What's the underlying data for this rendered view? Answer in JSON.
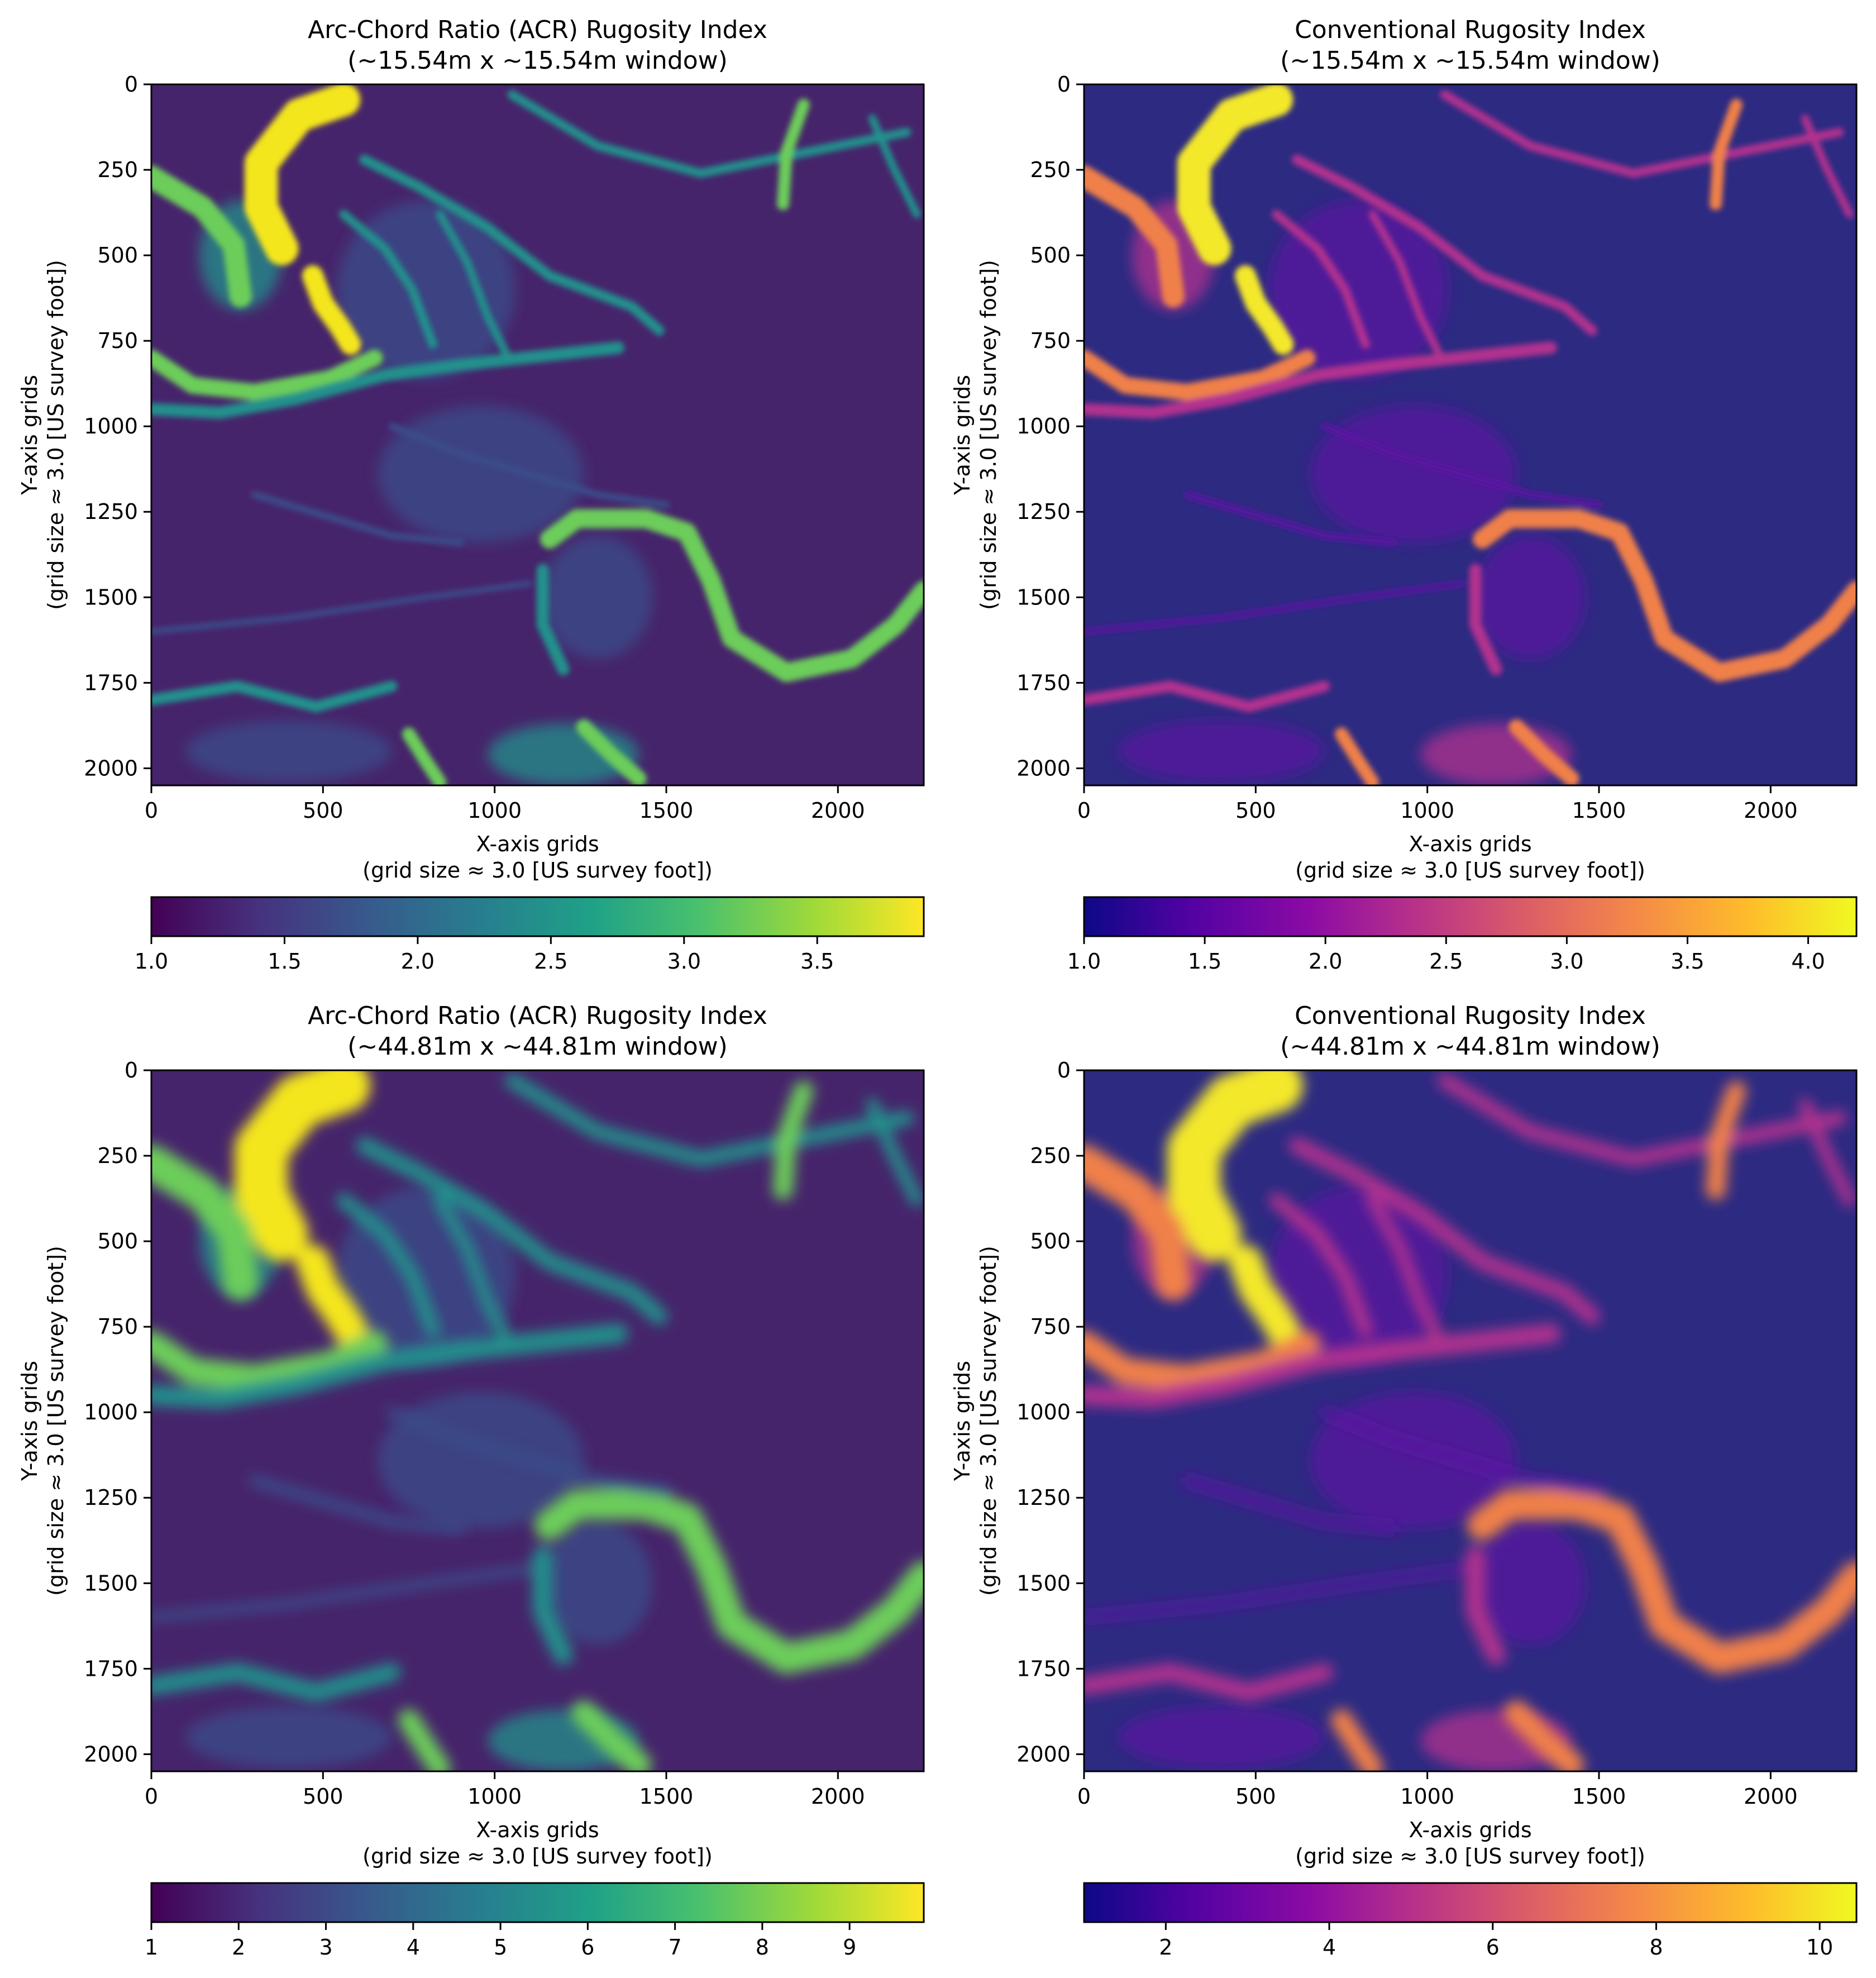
{
  "figure": {
    "panels": [
      {
        "title_line1": "Arc-Chord Ratio (ACR) Rugosity Index",
        "title_line2": "(~15.54m x ~15.54m window)",
        "xlabel_line1": "X-axis grids",
        "xlabel_line2": "(grid size ≈ 3.0 [US survey foot])",
        "ylabel_line1": "Y-axis grids",
        "ylabel_line2": "(grid size ≈ 3.0 [US survey foot])",
        "colormap": "viridis",
        "colorbar_ticks": [
          "1.0",
          "1.5",
          "2.0",
          "2.5",
          "3.0",
          "3.5"
        ]
      },
      {
        "title_line1": "Conventional Rugosity Index",
        "title_line2": "(~15.54m x ~15.54m window)",
        "xlabel_line1": "X-axis grids",
        "xlabel_line2": "(grid size ≈ 3.0 [US survey foot])",
        "ylabel_line1": "Y-axis grids",
        "ylabel_line2": "(grid size ≈ 3.0 [US survey foot])",
        "colormap": "plasma",
        "colorbar_ticks": [
          "1.0",
          "1.5",
          "2.0",
          "2.5",
          "3.0",
          "3.5",
          "4.0"
        ]
      },
      {
        "title_line1": "Arc-Chord Ratio (ACR) Rugosity Index",
        "title_line2": "(~44.81m x ~44.81m window)",
        "xlabel_line1": "X-axis grids",
        "xlabel_line2": "(grid size ≈ 3.0 [US survey foot])",
        "ylabel_line1": "Y-axis grids",
        "ylabel_line2": "(grid size ≈ 3.0 [US survey foot])",
        "colormap": "viridis",
        "colorbar_ticks": [
          "1",
          "2",
          "3",
          "4",
          "5",
          "6",
          "7",
          "8",
          "9"
        ]
      },
      {
        "title_line1": "Conventional Rugosity Index",
        "title_line2": "(~44.81m x ~44.81m window)",
        "xlabel_line1": "X-axis grids",
        "xlabel_line2": "(grid size ≈ 3.0 [US survey foot])",
        "ylabel_line1": "Y-axis grids",
        "ylabel_line2": "(grid size ≈ 3.0 [US survey foot])",
        "colormap": "plasma",
        "colorbar_ticks": [
          "2",
          "4",
          "6",
          "8",
          "10"
        ]
      }
    ]
  },
  "chart_data": [
    {
      "type": "heatmap",
      "title": "Arc-Chord Ratio (ACR) Rugosity Index (~15.54m x ~15.54m window)",
      "xlabel": "X-axis grids (grid size ≈ 3.0 [US survey foot])",
      "ylabel": "Y-axis grids (grid size ≈ 3.0 [US survey foot])",
      "x_ticks": [
        0,
        500,
        1000,
        1500,
        2000
      ],
      "y_ticks": [
        0,
        250,
        500,
        750,
        1000,
        1250,
        1500,
        1750,
        2000
      ],
      "xlim": [
        0,
        2250
      ],
      "ylim": [
        2050,
        0
      ],
      "colormap": "viridis",
      "colorbar_range": [
        1.0,
        3.9
      ],
      "colorbar_ticks": [
        1.0,
        1.5,
        2.0,
        2.5,
        3.0,
        3.5
      ]
    },
    {
      "type": "heatmap",
      "title": "Conventional Rugosity Index (~15.54m x ~15.54m window)",
      "xlabel": "X-axis grids (grid size ≈ 3.0 [US survey foot])",
      "ylabel": "Y-axis grids (grid size ≈ 3.0 [US survey foot])",
      "x_ticks": [
        0,
        500,
        1000,
        1500,
        2000
      ],
      "y_ticks": [
        0,
        250,
        500,
        750,
        1000,
        1250,
        1500,
        1750,
        2000
      ],
      "xlim": [
        0,
        2250
      ],
      "ylim": [
        2050,
        0
      ],
      "colormap": "plasma",
      "colorbar_range": [
        1.0,
        4.2
      ],
      "colorbar_ticks": [
        1.0,
        1.5,
        2.0,
        2.5,
        3.0,
        3.5,
        4.0
      ]
    },
    {
      "type": "heatmap",
      "title": "Arc-Chord Ratio (ACR) Rugosity Index (~44.81m x ~44.81m window)",
      "xlabel": "X-axis grids (grid size ≈ 3.0 [US survey foot])",
      "ylabel": "Y-axis grids (grid size ≈ 3.0 [US survey foot])",
      "x_ticks": [
        0,
        500,
        1000,
        1500,
        2000
      ],
      "y_ticks": [
        0,
        250,
        500,
        750,
        1000,
        1250,
        1500,
        1750,
        2000
      ],
      "xlim": [
        0,
        2250
      ],
      "ylim": [
        2050,
        0
      ],
      "colormap": "viridis",
      "colorbar_range": [
        1,
        9.85
      ],
      "colorbar_ticks": [
        1,
        2,
        3,
        4,
        5,
        6,
        7,
        8,
        9
      ]
    },
    {
      "type": "heatmap",
      "title": "Conventional Rugosity Index (~44.81m x ~44.81m window)",
      "xlabel": "X-axis grids (grid size ≈ 3.0 [US survey foot])",
      "ylabel": "Y-axis grids (grid size ≈ 3.0 [US survey foot])",
      "x_ticks": [
        0,
        500,
        1000,
        1500,
        2000
      ],
      "y_ticks": [
        0,
        250,
        500,
        750,
        1000,
        1250,
        1500,
        1750,
        2000
      ],
      "xlim": [
        0,
        2250
      ],
      "ylim": [
        2050,
        0
      ],
      "colormap": "plasma",
      "colorbar_range": [
        1,
        10.45
      ],
      "colorbar_ticks": [
        2,
        4,
        6,
        8,
        10
      ]
    }
  ]
}
